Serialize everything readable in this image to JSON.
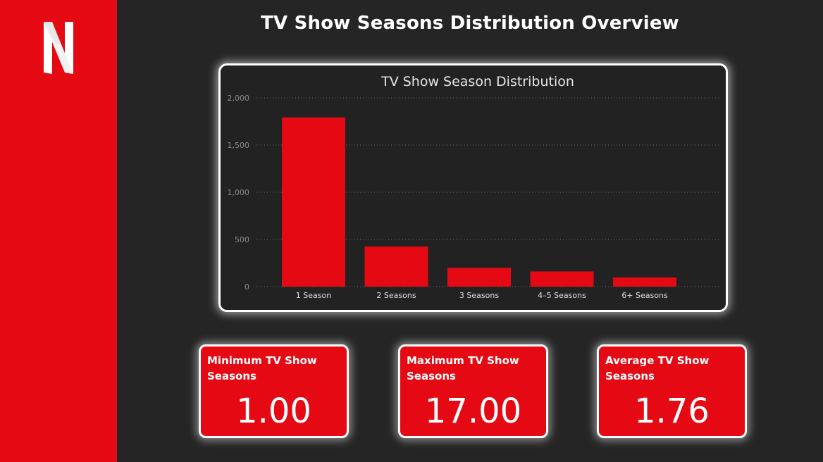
{
  "dashboard": {
    "title": "TV Show Seasons Distribution Overview",
    "logo_letter": "N"
  },
  "colors": {
    "accent": "#e50914",
    "background": "#252525",
    "panel": "#222222",
    "text": "#ffffff",
    "grid": "#6a6a6a",
    "tick": "#8a8a8a"
  },
  "chart_data": {
    "type": "bar",
    "title": "TV Show Season Distribution",
    "categories": [
      "1 Season",
      "2 Seasons",
      "3 Seasons",
      "4–5 Seasons",
      "6+ Seasons"
    ],
    "values": [
      1793,
      425,
      199,
      161,
      97
    ],
    "ylim": [
      0,
      2000
    ],
    "yticks": [
      0,
      500,
      1000,
      1500,
      2000
    ],
    "ytick_labels": [
      "0",
      "500",
      "1,000",
      "1,500",
      "2,000"
    ],
    "xlabel": "",
    "ylabel": "",
    "grid": true,
    "grid_style": "dotted"
  },
  "kpis": {
    "min": {
      "label": "Minimum TV Show Seasons",
      "value": "1.00"
    },
    "max": {
      "label": "Maximum TV Show Seasons",
      "value": "17.00"
    },
    "avg": {
      "label": "Average TV Show Seasons",
      "value": "1.76"
    }
  }
}
